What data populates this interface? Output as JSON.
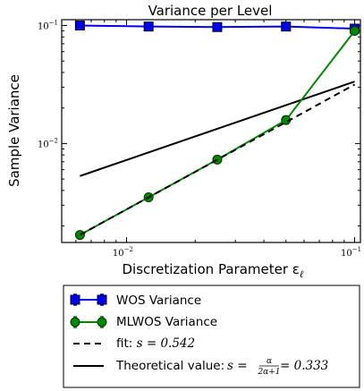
{
  "chart_data": {
    "type": "line",
    "title": "Variance per Level",
    "xlabel": "Discretization Parameter ε",
    "xlabel_subscript": "ℓ",
    "ylabel": "Sample Variance",
    "xscale": "log",
    "yscale": "log",
    "xlim": [
      0.0052,
      0.106
    ],
    "ylim": [
      0.00145,
      0.112
    ],
    "x_ticks": [
      {
        "value": 0.01,
        "base": "10",
        "exp": "−2"
      },
      {
        "value": 0.1,
        "base": "10",
        "exp": "−1"
      }
    ],
    "y_ticks": [
      {
        "value": 0.01,
        "base": "10",
        "exp": "−2"
      },
      {
        "value": 0.1,
        "base": "10",
        "exp": "−1"
      }
    ],
    "grid": false,
    "legend_position": "below",
    "series": [
      {
        "name": "WOS Variance",
        "color": "#0000ee",
        "marker": "square",
        "x": [
          0.00625,
          0.0125,
          0.025,
          0.05,
          0.1
        ],
        "y": [
          0.1,
          0.098,
          0.097,
          0.098,
          0.094
        ]
      },
      {
        "name": "MLWOS Variance",
        "color": "#008800",
        "marker": "circle",
        "x": [
          0.00625,
          0.0125,
          0.025,
          0.05,
          0.1
        ],
        "y": [
          0.00168,
          0.0035,
          0.0073,
          0.0158,
          0.09
        ]
      },
      {
        "name": "fit: ",
        "math": "s = 0.542",
        "color": "#000000",
        "style": "dashed",
        "x": [
          0.00625,
          0.1
        ],
        "y": [
          0.00168,
          0.0316
        ]
      },
      {
        "name": "Theoretical value: ",
        "math_prefix": "s = ",
        "frac_num": "α",
        "frac_den": "2α+1",
        "math_suffix": " = 0.333",
        "color": "#000000",
        "style": "solid",
        "x": [
          0.00625,
          0.1
        ],
        "y": [
          0.0053,
          0.0335
        ]
      }
    ]
  }
}
